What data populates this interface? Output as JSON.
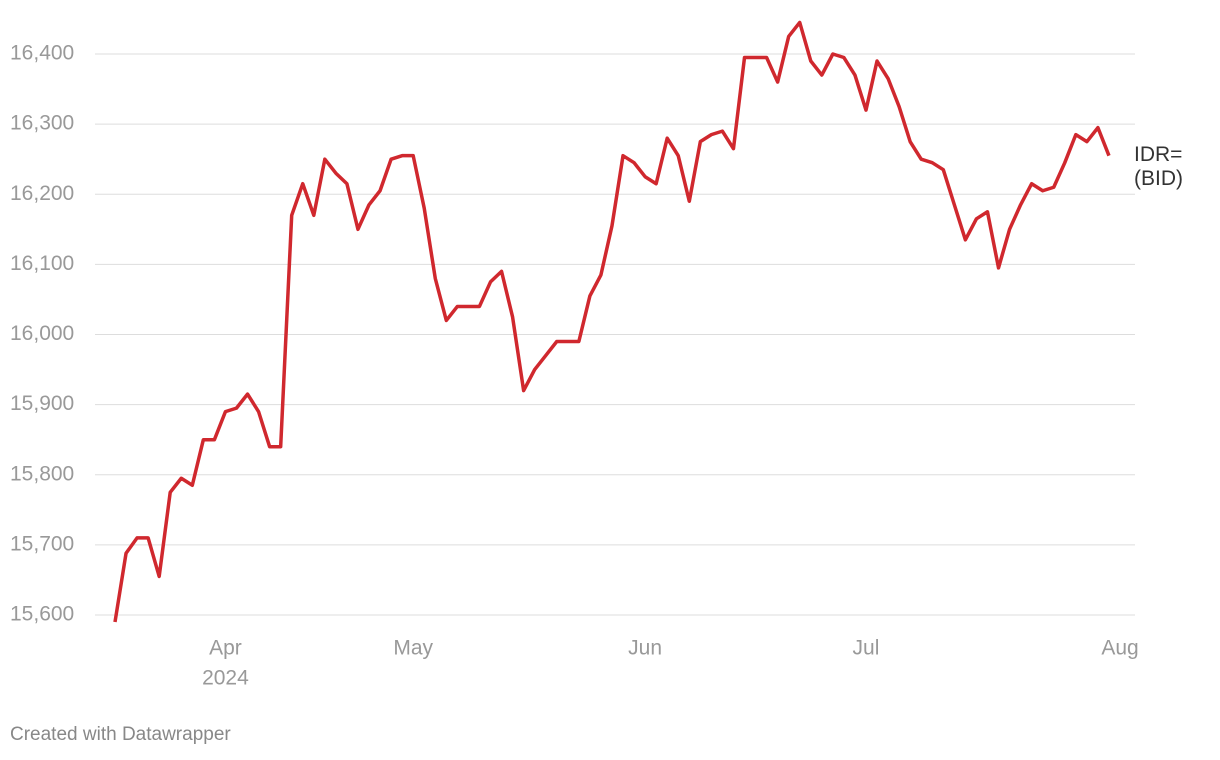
{
  "chart_data": {
    "type": "line",
    "categories": [
      null,
      null,
      null,
      null,
      null,
      null,
      null,
      null,
      null,
      null,
      "Apr",
      null,
      null,
      null,
      null,
      null,
      null,
      null,
      null,
      null,
      null,
      null,
      null,
      null,
      null,
      null,
      null,
      "May",
      null,
      null,
      null,
      null,
      null,
      null,
      null,
      null,
      null,
      null,
      null,
      null,
      null,
      null,
      null,
      null,
      null,
      null,
      null,
      null,
      "Jun",
      null,
      null,
      null,
      null,
      null,
      null,
      null,
      null,
      null,
      null,
      null,
      null,
      null,
      null,
      null,
      null,
      null,
      null,
      null,
      "Jul",
      null,
      null,
      null,
      null,
      null,
      null,
      null,
      null,
      null,
      null,
      null,
      null,
      null,
      null,
      null,
      null,
      null,
      null,
      null,
      null,
      null,
      null,
      "Aug"
    ],
    "x_sublabel": "2024",
    "series": [
      {
        "name": "IDR= (BID)",
        "color": "#d0282e",
        "values": [
          15590,
          15688,
          15710,
          15710,
          15655,
          15775,
          15795,
          15785,
          15850,
          15850,
          15890,
          15895,
          15915,
          15890,
          15840,
          15840,
          16170,
          16215,
          16170,
          16250,
          16230,
          16215,
          16150,
          16185,
          16205,
          16250,
          16255,
          16255,
          16180,
          16080,
          16020,
          16040,
          16040,
          16040,
          16075,
          16090,
          16025,
          15920,
          15950,
          15970,
          15990,
          15990,
          15990,
          16055,
          16085,
          16155,
          16255,
          16245,
          16225,
          16215,
          16280,
          16255,
          16190,
          16275,
          16285,
          16290,
          16265,
          16395,
          16395,
          16395,
          16360,
          16425,
          16445,
          16390,
          16370,
          16400,
          16395,
          16370,
          16320,
          16390,
          16365,
          16325,
          16275,
          16250,
          16245,
          16235,
          16185,
          16135,
          16165,
          16175,
          16095,
          16150,
          16185,
          16215,
          16205,
          16210,
          16245,
          16285,
          16275,
          16295,
          16255,
          null
        ]
      }
    ],
    "ylim": [
      15600,
      16400
    ],
    "yticks": [
      {
        "value": 15600,
        "label": "15,600"
      },
      {
        "value": 15700,
        "label": "15,700"
      },
      {
        "value": 15800,
        "label": "15,800"
      },
      {
        "value": 15900,
        "label": "15,900"
      },
      {
        "value": 16000,
        "label": "16,000"
      },
      {
        "value": 16100,
        "label": "16,100"
      },
      {
        "value": 16200,
        "label": "16,200"
      },
      {
        "value": 16300,
        "label": "16,300"
      },
      {
        "value": 16400,
        "label": "16,400"
      }
    ],
    "grid": true,
    "credit": "Created with Datawrapper"
  }
}
